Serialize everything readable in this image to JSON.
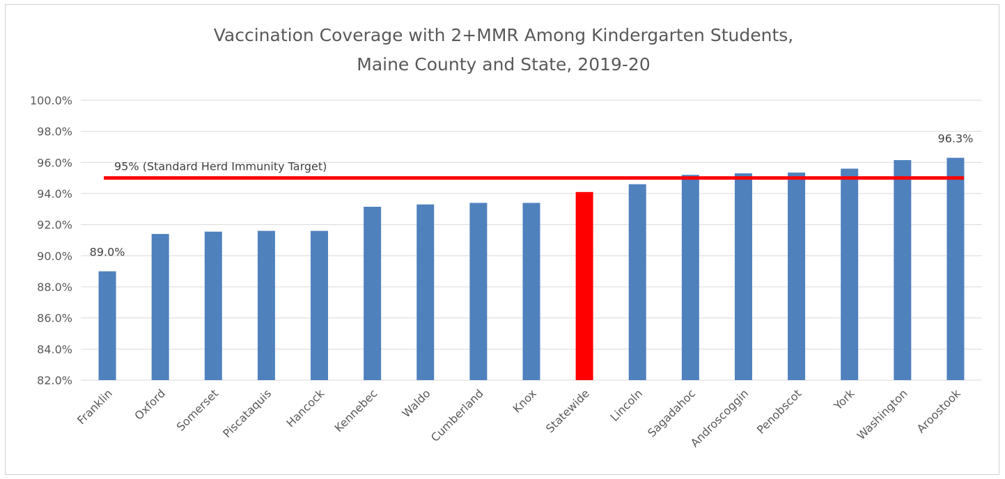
{
  "chart_data": {
    "type": "bar",
    "title_lines": [
      "Vaccination Coverage with 2+MMR Among Kindergarten Students,",
      "Maine County and State, 2019-20"
    ],
    "xlabel": "",
    "ylabel": "",
    "ylim": [
      82,
      100
    ],
    "yticks": [
      82,
      84,
      86,
      88,
      90,
      92,
      94,
      96,
      98,
      100
    ],
    "ytick_labels": [
      "82.0%",
      "84.0%",
      "86.0%",
      "88.0%",
      "90.0%",
      "92.0%",
      "94.0%",
      "96.0%",
      "98.0%",
      "100.0%"
    ],
    "grid": true,
    "categories": [
      "Franklin",
      "Oxford",
      "Somerset",
      "Piscataquis",
      "Hancock",
      "Kennebec",
      "Waldo",
      "Cumberland",
      "Knox",
      "Statewide",
      "Lincoln",
      "Sagadahoc",
      "Androscoggin",
      "Penobscot",
      "York",
      "Washington",
      "Aroostook"
    ],
    "values": [
      89.0,
      91.4,
      91.55,
      91.6,
      91.6,
      93.15,
      93.3,
      93.4,
      93.4,
      94.1,
      94.6,
      95.2,
      95.3,
      95.35,
      95.6,
      96.15,
      96.3
    ],
    "highlight_category": "Statewide",
    "colors": {
      "bar": "#4f81bd",
      "highlight": "#ff0000",
      "reference_line": "#ff0000",
      "grid": "#d9d9d9"
    },
    "data_labels": [
      {
        "category": "Franklin",
        "text": "89.0%"
      },
      {
        "category": "Aroostook",
        "text": "96.3%"
      }
    ],
    "reference_line": {
      "value": 95,
      "label": "95% (Standard Herd Immunity Target)"
    }
  }
}
